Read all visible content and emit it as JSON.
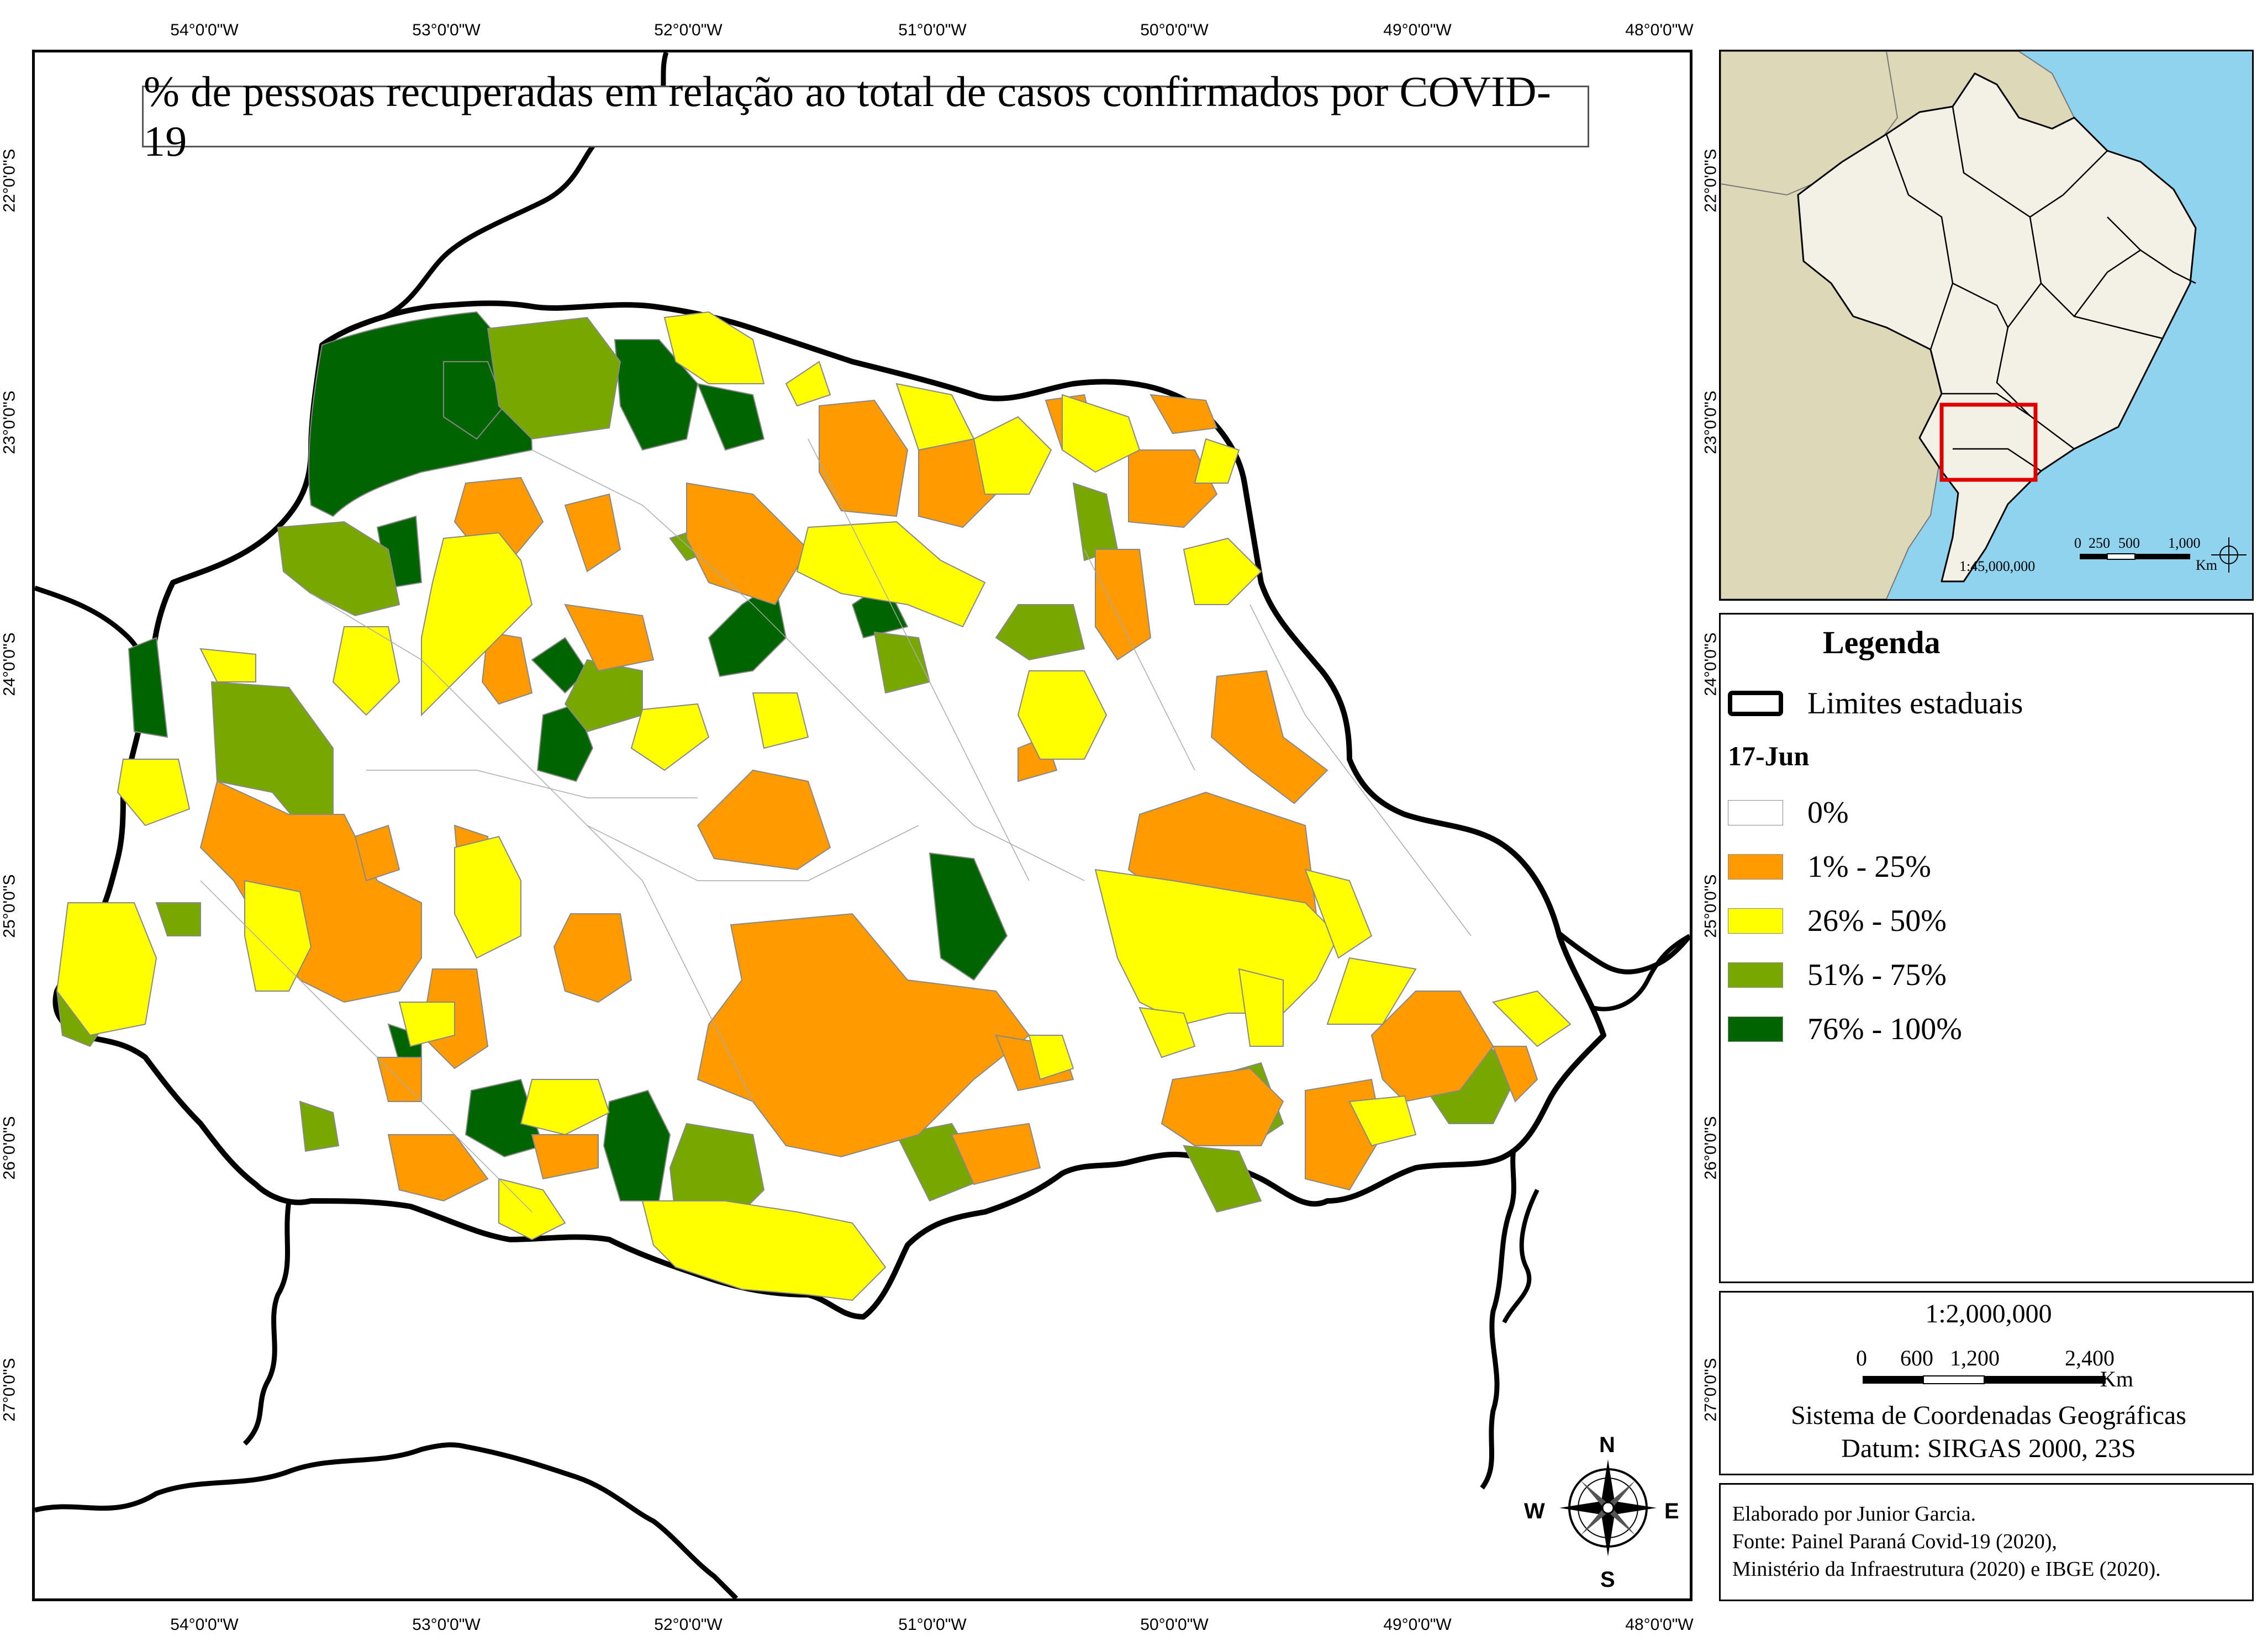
{
  "title": "% de pessoas recuperadas em relação ao total de casos confirmados por COVID-19",
  "grid": {
    "top_ticks": [
      "54°0'0\"W",
      "53°0'0\"W",
      "52°0'0\"W",
      "51°0'0\"W",
      "50°0'0\"W",
      "49°0'0\"W",
      "48°0'0\"W"
    ],
    "bottom_ticks": [
      "54°0'0\"W",
      "53°0'0\"W",
      "52°0'0\"W",
      "51°0'0\"W",
      "50°0'0\"W",
      "49°0'0\"W",
      "48°0'0\"W"
    ],
    "left_ticks": [
      "22°0'0\"S",
      "23°0'0\"S",
      "24°0'0\"S",
      "25°0'0\"S",
      "26°0'0\"S",
      "27°0'0\"S"
    ],
    "right_ticks": [
      "22°0'0\"S",
      "23°0'0\"S",
      "24°0'0\"S",
      "25°0'0\"S",
      "26°0'0\"S",
      "27°0'0\"S"
    ]
  },
  "legend": {
    "title": "Legenda",
    "state_limits": "Limites estaduais",
    "date": "17-Jun",
    "classes": [
      {
        "label": "0%",
        "color": "#ffffff"
      },
      {
        "label": "1% - 25%",
        "color": "#ff9a00"
      },
      {
        "label": "26% - 50%",
        "color": "#ffff00"
      },
      {
        "label": "51% - 75%",
        "color": "#78a800"
      },
      {
        "label": "76% - 100%",
        "color": "#006400"
      }
    ]
  },
  "scale": {
    "ratio": "1:2,000,000",
    "ticks": [
      "0",
      "600",
      "1,200",
      "2,400"
    ],
    "unit": "Km",
    "crs_line1": "Sistema de Coordenadas Geográficas",
    "crs_line2": "Datum: SIRGAS 2000, 23S"
  },
  "credits": {
    "line1": "Elaborado por Junior Garcia.",
    "line2": "Fonte: Painel Paraná Covid-19 (2020),",
    "line3": "Ministério da Infraestrutura (2020) e IBGE (2020)."
  },
  "inset": {
    "scale_ratio": "1:45,000,000",
    "scale_ticks": [
      "0",
      "250",
      "500",
      "1,000"
    ],
    "scale_unit": "Km",
    "ocean_color": "#8fd3ef",
    "land_color": "#dcd8b8",
    "brazil_color": "#f3f1e6",
    "highlight_color": "#e00000"
  },
  "compass": {
    "n": "N",
    "s": "S",
    "e": "E",
    "w": "W"
  }
}
